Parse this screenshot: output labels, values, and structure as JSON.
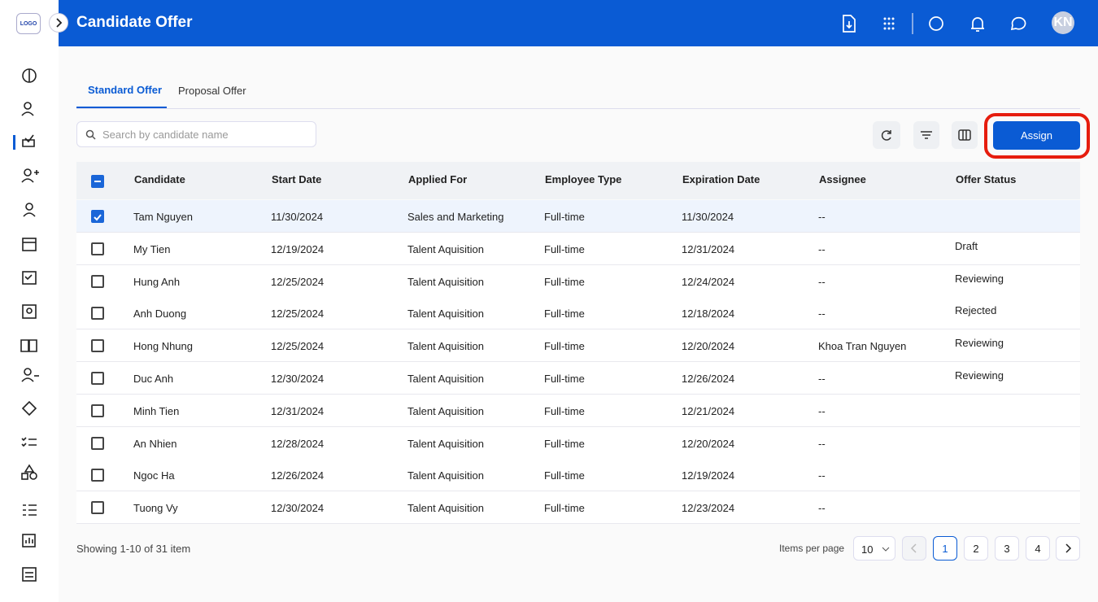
{
  "logo": "LOGO",
  "header": {
    "title": "Candidate Offer",
    "avatar": "KN"
  },
  "tabs": [
    "Standard Offer",
    "Proposal Offer"
  ],
  "search": {
    "placeholder": "Search by candidate name"
  },
  "assign_button": "Assign",
  "table": {
    "columns": [
      "Candidate",
      "Start Date",
      "Applied For",
      "Employee Type",
      "Expiration Date",
      "Assignee",
      "Offer Status"
    ],
    "rows": [
      {
        "checked": true,
        "cells": [
          "Tam Nguyen",
          "11/30/2024",
          "Sales and Marketing",
          "Full-time",
          "11/30/2024",
          "--"
        ]
      },
      {
        "checked": false,
        "cells": [
          "My Tien",
          "12/19/2024",
          "Talent Aquisition",
          "Full-time",
          "12/31/2024",
          "--",
          "Draft"
        ]
      },
      {
        "checked": false,
        "cells": [
          "Hung Anh",
          "12/25/2024",
          "Talent Aquisition",
          "Full-time",
          "12/24/2024",
          "--",
          "Reviewing"
        ]
      },
      {
        "checked": false,
        "cells": [
          "Anh Duong",
          "12/25/2024",
          "Talent Aquisition",
          "Full-time",
          "12/18/2024",
          "--",
          "Rejected"
        ]
      },
      {
        "checked": false,
        "cells": [
          "Hong Nhung",
          "12/25/2024",
          "Talent Aquisition",
          "Full-time",
          "12/20/2024",
          "Khoa Tran Nguyen",
          "Reviewing"
        ]
      },
      {
        "checked": false,
        "cells": [
          "Duc Anh",
          "12/30/2024",
          "Talent Aquisition",
          "Full-time",
          "12/26/2024",
          "--",
          "Reviewing"
        ]
      },
      {
        "checked": false,
        "cells": [
          "Minh Tien",
          "12/31/2024",
          "Talent Aquisition",
          "Full-time",
          "12/21/2024",
          "--"
        ]
      },
      {
        "checked": false,
        "cells": [
          "An Nhien",
          "12/28/2024",
          "Talent Aquisition",
          "Full-time",
          "12/20/2024",
          "--"
        ]
      },
      {
        "checked": false,
        "cells": [
          "Ngoc Ha",
          "12/26/2024",
          "Talent Aquisition",
          "Full-time",
          "12/19/2024",
          "--"
        ]
      },
      {
        "checked": false,
        "cells": [
          "Tuong Vy",
          "12/30/2024",
          "Talent Aquisition",
          "Full-time",
          "12/23/2024",
          "--"
        ]
      }
    ]
  },
  "footer": {
    "summary": "Showing 1-10 of 31 item",
    "per_page_label": "Items per page",
    "per_page": "10",
    "pages": [
      "1",
      "2",
      "3",
      "4"
    ],
    "current_page": "1"
  }
}
